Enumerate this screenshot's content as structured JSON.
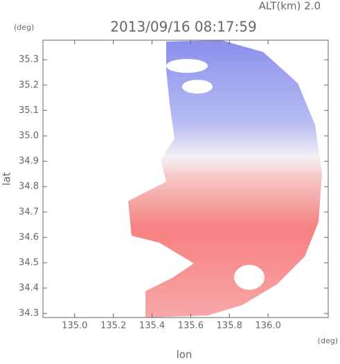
{
  "chart_data": {
    "type": "map",
    "title": "2013/09/16 08:17:59",
    "subtitle": "ALT(km) 2.0",
    "x_label": "lon",
    "y_label": "lat",
    "x_unit": "(deg)",
    "y_unit": "(deg)",
    "xlim": [
      134.836,
      136.311
    ],
    "ylim": [
      34.284,
      35.377
    ],
    "xticks": [
      {
        "value": 135,
        "label": "135.0"
      },
      135.2,
      135.4,
      135.6,
      135.8,
      {
        "value": 136,
        "label": "136.0"
      }
    ],
    "yticks": [
      34.3,
      34.4,
      34.5,
      34.6,
      34.7,
      34.8,
      34.9,
      {
        "value": 35,
        "label": "35.0"
      },
      35.1,
      35.2,
      35.3
    ]
  }
}
